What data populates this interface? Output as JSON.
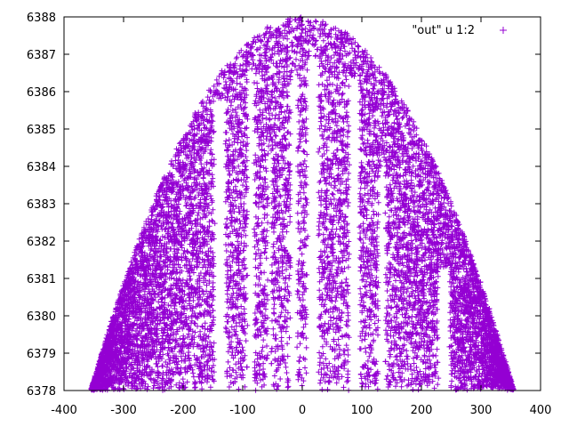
{
  "chart_data": {
    "type": "scatter",
    "title": "",
    "xlabel": "",
    "ylabel": "",
    "xlim": [
      -400,
      400
    ],
    "ylim": [
      6378,
      6388
    ],
    "xticks": [
      -400,
      -300,
      -200,
      -100,
      0,
      100,
      200,
      300,
      400
    ],
    "yticks": [
      6378,
      6379,
      6380,
      6381,
      6382,
      6383,
      6384,
      6385,
      6386,
      6387,
      6388
    ],
    "grid": false,
    "legend_position": "top-right",
    "series": [
      {
        "name": "\"out\" u 1:2",
        "color": "#9400d3",
        "marker": "plus",
        "envelope": {
          "peak_x": 0,
          "peak_y": 6388,
          "base_y": 6378,
          "x_range": [
            -355,
            355
          ]
        },
        "gaps": [
          {
            "x": [
              -148,
              -128
            ],
            "y_above": 6385.8
          },
          {
            "x": [
              -92,
              -80
            ],
            "y_above": 6386.6
          },
          {
            "x": [
              -58,
              -52
            ],
            "y_above": 6384.3
          },
          {
            "x": [
              -20,
              -8
            ],
            "y_above": 6386.5
          },
          {
            "x": [
              8,
              28
            ],
            "y_above": 6386.9
          },
          {
            "x": [
              78,
              96
            ],
            "y_above": 6386.4
          },
          {
            "x": [
              128,
              140
            ],
            "y_above": 6384.0
          },
          {
            "x": [
              228,
              248
            ],
            "y_above": 6381.3
          }
        ]
      }
    ]
  }
}
